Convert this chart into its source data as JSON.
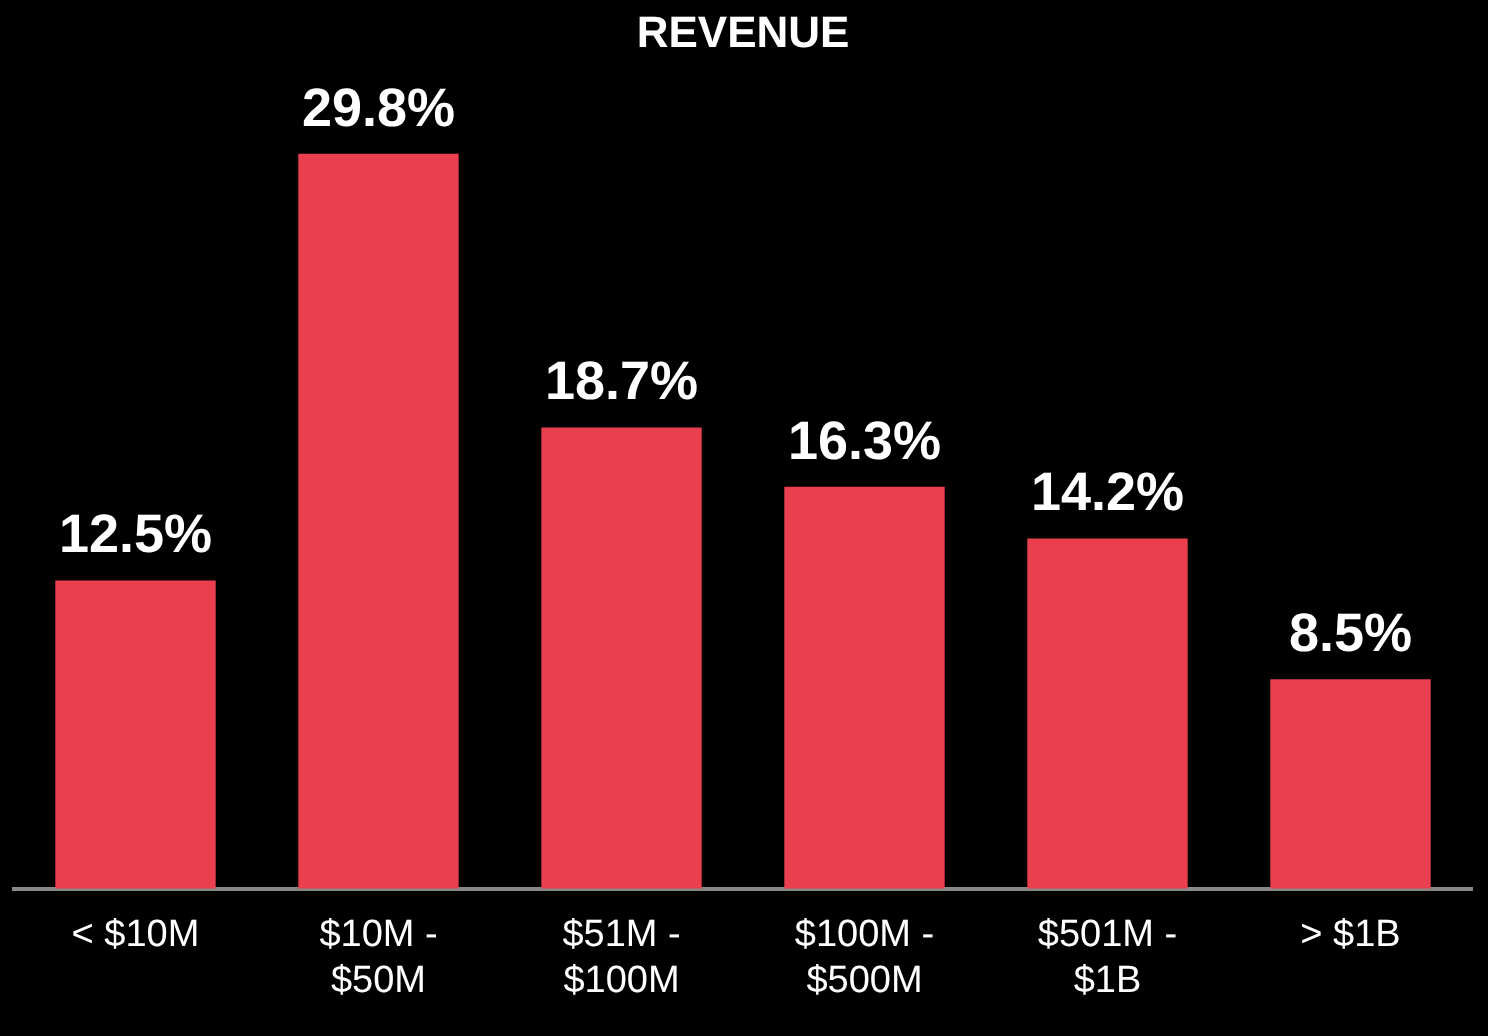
{
  "chart_data": {
    "type": "bar",
    "title": "REVENUE",
    "categories": [
      "< $10M",
      "$10M - $50M",
      "$51M - $100M",
      "$100M - $500M",
      "$501M - $1B",
      "> $1B"
    ],
    "values": [
      12.5,
      29.8,
      18.7,
      16.3,
      14.2,
      8.5
    ],
    "value_labels": [
      "12.5%",
      "29.8%",
      "18.7%",
      "16.3%",
      "14.2%",
      "8.5%"
    ],
    "color": "#ea3f4f",
    "grid": false,
    "legend": false,
    "tick_labels": "x"
  }
}
